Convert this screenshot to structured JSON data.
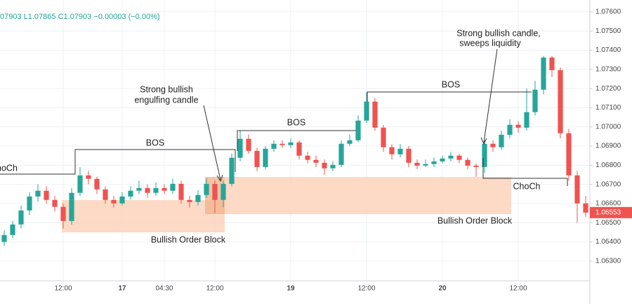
{
  "chart_data": {
    "type": "candlestick",
    "legend_text": "07903 L1.07865 C1.07903 −0.00003 (−0.00%)",
    "categories": [
      null,
      null,
      null,
      null,
      null,
      null,
      null,
      "12:00",
      null,
      null,
      null,
      null,
      null,
      null,
      "17",
      null,
      null,
      null,
      null,
      "04:30",
      null,
      null,
      null,
      null,
      null,
      "12:00",
      null,
      null,
      null,
      null,
      null,
      null,
      null,
      null,
      "19",
      null,
      null,
      null,
      null,
      null,
      null,
      null,
      null,
      "12:00",
      null,
      null,
      null,
      null,
      null,
      null,
      null,
      null,
      "20",
      null,
      null,
      null,
      null,
      null,
      null,
      null,
      null,
      "12:00",
      null,
      null,
      null,
      null,
      null,
      null,
      null,
      null
    ],
    "open": [
      1.064,
      1.06436,
      1.06491,
      1.06564,
      1.06637,
      1.06667,
      1.06619,
      1.06583,
      1.06509,
      1.06656,
      1.06747,
      1.06729,
      1.06674,
      1.06619,
      1.06601,
      1.06637,
      1.06667,
      1.06681,
      1.06656,
      1.06681,
      1.06667,
      1.06703,
      1.06619,
      1.06608,
      1.06645,
      1.06703,
      1.06619,
      1.06703,
      1.06839,
      1.06938,
      1.06875,
      1.06791,
      1.06886,
      1.06912,
      1.06905,
      1.06919,
      1.0685,
      1.06828,
      1.06813,
      1.06784,
      1.06802,
      1.06912,
      1.0693,
      1.07033,
      1.07132,
      1.06996,
      1.06894,
      1.06857,
      1.06886,
      1.06813,
      1.06798,
      1.06806,
      1.0682,
      1.06835,
      1.0685,
      1.06828,
      1.06798,
      1.06791,
      1.06912,
      1.06894,
      1.06959,
      1.07011,
      1.06996,
      1.07077,
      1.07194,
      1.07362,
      1.07296,
      1.06967,
      1.06747,
      1.06601
    ],
    "high": [
      1.0646,
      1.0651,
      1.0659,
      1.0666,
      1.067,
      1.0669,
      1.0664,
      1.066,
      1.0668,
      1.0679,
      1.0677,
      1.0674,
      1.0669,
      1.0664,
      1.0666,
      1.0669,
      1.0672,
      1.067,
      1.0671,
      1.067,
      1.0673,
      1.0672,
      1.0664,
      1.0667,
      1.0673,
      1.0672,
      1.0672,
      1.0686,
      1.0698,
      1.0696,
      1.0689,
      1.069,
      1.0693,
      1.0693,
      1.0694,
      1.0693,
      1.0687,
      1.0685,
      1.0683,
      1.0682,
      1.0693,
      1.0696,
      1.0706,
      1.0718,
      1.0715,
      1.0701,
      1.0691,
      1.0691,
      1.069,
      1.0683,
      1.0683,
      1.0684,
      1.0685,
      1.0687,
      1.0686,
      1.0684,
      1.0681,
      1.0693,
      1.0693,
      1.0698,
      1.0704,
      1.0703,
      1.072,
      1.0724,
      1.0737,
      1.0737,
      1.0731,
      1.0699,
      1.0677,
      1.0664
    ],
    "low": [
      1.0638,
      1.0642,
      1.0647,
      1.0654,
      1.0661,
      1.066,
      1.0656,
      1.0647,
      1.0649,
      1.0664,
      1.067,
      1.0665,
      1.066,
      1.0658,
      1.0659,
      1.0662,
      1.0665,
      1.0663,
      1.0664,
      1.0665,
      1.0665,
      1.066,
      1.0658,
      1.0659,
      1.0663,
      1.0655,
      1.0658,
      1.0669,
      1.0682,
      1.0686,
      1.0677,
      1.0678,
      1.0687,
      1.0689,
      1.0689,
      1.0683,
      1.0681,
      1.0679,
      1.0675,
      1.0677,
      1.0679,
      1.069,
      1.0692,
      1.0702,
      1.0698,
      1.0687,
      1.0683,
      1.0684,
      1.0679,
      1.0678,
      1.0679,
      1.0679,
      1.0681,
      1.0682,
      1.0681,
      1.0678,
      1.0674,
      1.0676,
      1.0687,
      1.0688,
      1.0694,
      1.0697,
      1.0698,
      1.0706,
      1.0717,
      1.0726,
      1.0694,
      1.0672,
      1.065,
      1.0653
    ],
    "close": [
      1.06436,
      1.06491,
      1.06564,
      1.06637,
      1.06667,
      1.06619,
      1.06583,
      1.06509,
      1.06656,
      1.06747,
      1.06729,
      1.06674,
      1.06619,
      1.06601,
      1.06637,
      1.06667,
      1.06681,
      1.06656,
      1.06681,
      1.06667,
      1.06703,
      1.06619,
      1.06608,
      1.06645,
      1.06703,
      1.06619,
      1.06703,
      1.06839,
      1.06938,
      1.06875,
      1.06791,
      1.06886,
      1.06912,
      1.06905,
      1.06919,
      1.0685,
      1.06828,
      1.06813,
      1.06784,
      1.06802,
      1.06912,
      1.0693,
      1.07033,
      1.07132,
      1.06996,
      1.06894,
      1.06857,
      1.06886,
      1.06813,
      1.06798,
      1.06806,
      1.0682,
      1.06835,
      1.0685,
      1.06828,
      1.06798,
      1.06791,
      1.06912,
      1.06894,
      1.06959,
      1.07011,
      1.06996,
      1.07077,
      1.07194,
      1.07362,
      1.07296,
      1.06967,
      1.06747,
      1.06601,
      1.06553
    ],
    "up_color": "#26a69a",
    "down_color": "#ef5350",
    "ylim": [
      1.06197,
      1.07662
    ],
    "yticks": [
      {
        "value": 1.063,
        "label": "1.06300"
      },
      {
        "value": 1.064,
        "label": "1.06400"
      },
      {
        "value": 1.065,
        "label": "1.06500"
      },
      {
        "value": 1.066,
        "label": "1.06600"
      },
      {
        "value": 1.067,
        "label": "1.06700"
      },
      {
        "value": 1.068,
        "label": "1.06800"
      },
      {
        "value": 1.069,
        "label": "1.06900"
      },
      {
        "value": 1.07,
        "label": "1.07000"
      },
      {
        "value": 1.071,
        "label": "1.07100"
      },
      {
        "value": 1.072,
        "label": "1.07200"
      },
      {
        "value": 1.073,
        "label": "1.07300"
      },
      {
        "value": 1.074,
        "label": "1.07400"
      },
      {
        "value": 1.075,
        "label": "1.07500"
      },
      {
        "value": 1.076,
        "label": "1.07600"
      }
    ],
    "last_price": {
      "value": 1.06553,
      "label": "1.06553"
    },
    "grid": true,
    "annotations": [
      "ChoCh",
      "BOS",
      "BOS",
      "BOS",
      "ChoCh",
      "Bullish Order Block",
      "Bullish Order Block",
      "Strong bullish",
      "engulfing candle",
      "Strong bullish candle,",
      "sweeps liquidity"
    ]
  }
}
